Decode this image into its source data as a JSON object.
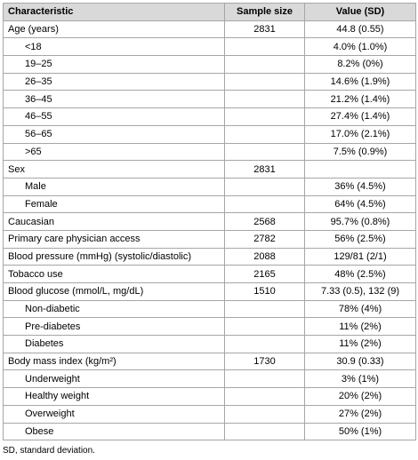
{
  "table": {
    "header": [
      "Characteristic",
      "Sample size",
      "Value (SD)"
    ],
    "groups": [
      {
        "label": "Age (years)",
        "n": 2831,
        "value": "44.8 (0.55)",
        "rows": [
          {
            "label": "<18",
            "value": "4.0% (1.0%)"
          },
          {
            "label": "19–25",
            "value": "8.2% (0%)"
          },
          {
            "label": "26–35",
            "value": "14.6% (1.9%)"
          },
          {
            "label": "36–45",
            "value": "21.2% (1.4%)"
          },
          {
            "label": "46–55",
            "value": "27.4% (1.4%)"
          },
          {
            "label": "56–65",
            "value": "17.0% (2.1%)"
          },
          {
            "label": ">65",
            "value": "7.5% (0.9%)"
          }
        ]
      },
      {
        "label": "Sex",
        "n": 2831,
        "rows": [
          {
            "label": "Male",
            "value": "36% (4.5%)"
          },
          {
            "label": "Female",
            "value": "64% (4.5%)"
          }
        ]
      },
      {
        "label": "Caucasian",
        "n": 2568,
        "value": "95.7% (0.8%)"
      },
      {
        "label": "Primary care physician access",
        "n": 2782,
        "value": "56% (2.5%)"
      },
      {
        "label": "Blood pressure (mmHg) (systolic/diastolic)",
        "n": 2088,
        "value": "129/81 (2/1)"
      },
      {
        "label": "Tobacco use",
        "n": 2165,
        "value": "48% (2.5%)"
      },
      {
        "label": "Blood glucose (mmol/L, mg/dL)",
        "n": 1510,
        "value": "7.33 (0.5), 132 (9)",
        "rows": [
          {
            "label": "Non-diabetic",
            "value": "78% (4%)"
          },
          {
            "label": "Pre-diabetes",
            "value": "11% (2%)"
          },
          {
            "label": "Diabetes",
            "value": "11% (2%)"
          }
        ]
      },
      {
        "label": "Body mass index (kg/m²)",
        "n": 1730,
        "value": "30.9 (0.33)",
        "rows": [
          {
            "label": "Underweight",
            "value": "3% (1%)"
          },
          {
            "label": "Healthy weight",
            "value": "20% (2%)"
          },
          {
            "label": "Overweight",
            "value": "27% (2%)"
          },
          {
            "label": "Obese",
            "value": "50% (1%)"
          }
        ]
      }
    ]
  },
  "footnote": "SD, standard deviation."
}
